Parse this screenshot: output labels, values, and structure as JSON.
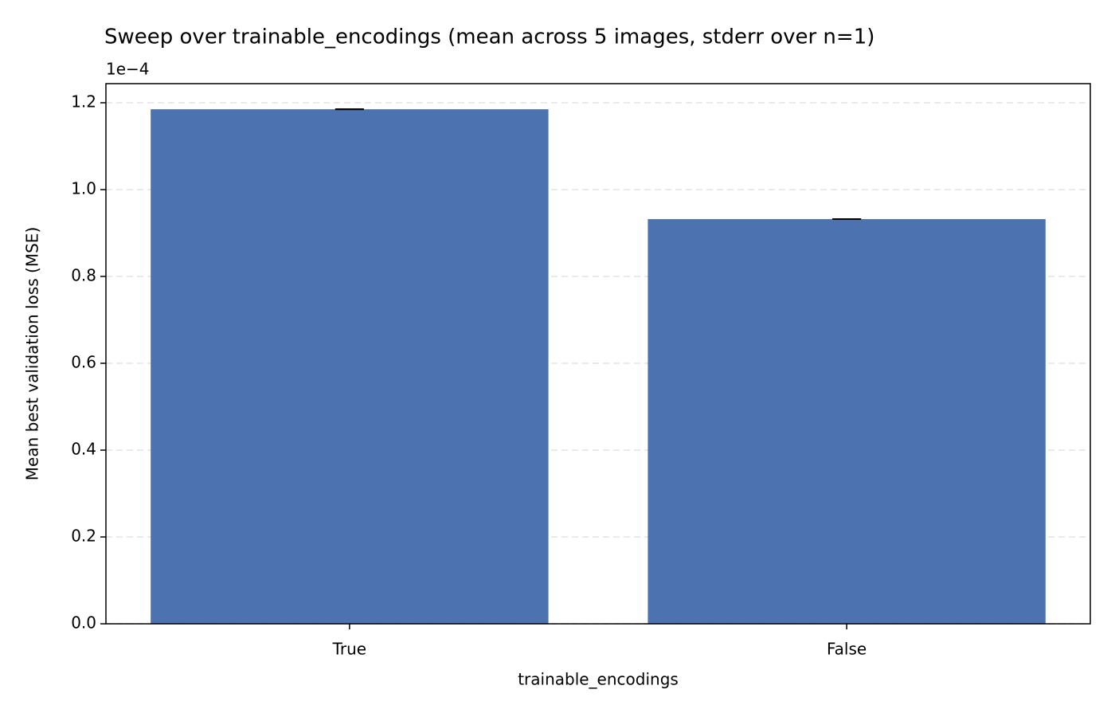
{
  "chart_data": {
    "type": "bar",
    "title": "Sweep over trainable_encodings (mean across 5 images, stderr over n=1)",
    "offset_label": "1e−4",
    "xlabel": "trainable_encodings",
    "ylabel": "Mean best validation loss (MSE)",
    "categories": [
      "True",
      "False"
    ],
    "values": [
      1.185,
      0.932
    ],
    "errors": [
      0,
      0
    ],
    "color": "#4c72b0",
    "ylim": [
      0,
      1.244
    ],
    "yticks": [
      {
        "value": 0,
        "label": "0.0"
      },
      0.2,
      0.4,
      0.6,
      0.8,
      {
        "value": 1,
        "label": "1.0"
      },
      1.2
    ],
    "grid": true
  }
}
